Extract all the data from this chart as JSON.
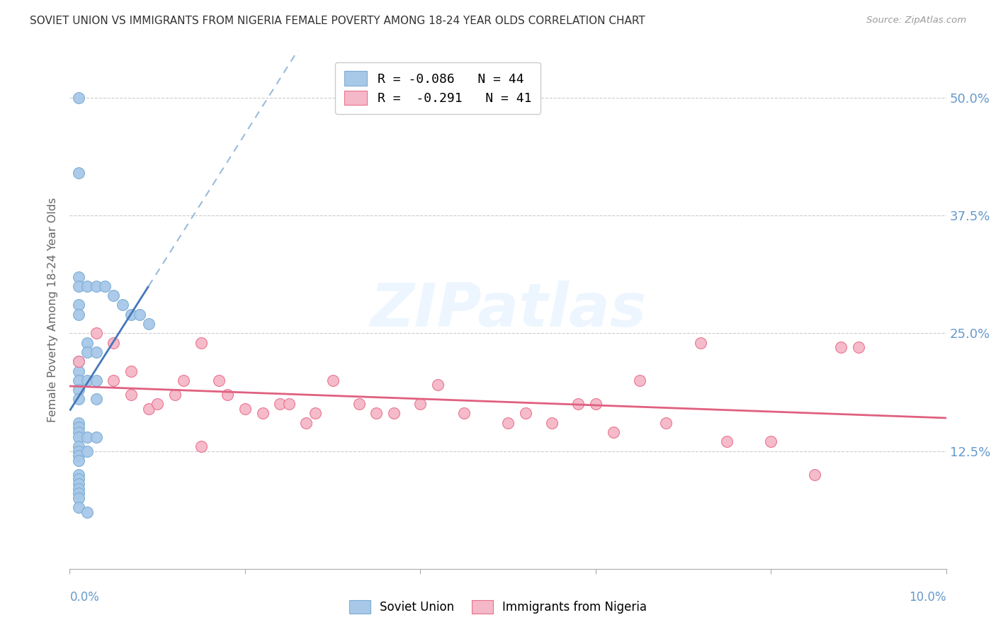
{
  "title": "SOVIET UNION VS IMMIGRANTS FROM NIGERIA FEMALE POVERTY AMONG 18-24 YEAR OLDS CORRELATION CHART",
  "source": "Source: ZipAtlas.com",
  "ylabel": "Female Poverty Among 18-24 Year Olds",
  "xlim": [
    0.0,
    0.1
  ],
  "ylim": [
    0.0,
    0.55
  ],
  "yticks": [
    0.125,
    0.25,
    0.375,
    0.5
  ],
  "ytick_labels": [
    "12.5%",
    "25.0%",
    "37.5%",
    "50.0%"
  ],
  "xtick_positions": [
    0.0,
    0.02,
    0.04,
    0.06,
    0.08,
    0.1
  ],
  "color_blue": "#a8c8e8",
  "color_blue_edge": "#7aadd4",
  "color_pink": "#f5b8c8",
  "color_pink_edge": "#e8708a",
  "color_line_blue": "#4477bb",
  "color_line_pink": "#e06080",
  "color_line_dashed": "#99bbdd",
  "color_grid": "#cccccc",
  "color_axis": "#aaaaaa",
  "color_ytick_right": "#6699cc",
  "color_ylabel": "#666666",
  "color_xlabel": "#6699cc",
  "color_title": "#333333",
  "color_source": "#999999",
  "color_watermark": "#ddeeff",
  "watermark": "ZIPatlas",
  "legend_label_blue": "R = -0.086   N = 44",
  "legend_label_pink": "R =  -0.291   N = 41",
  "soviet_x": [
    0.001,
    0.001,
    0.001,
    0.001,
    0.001,
    0.001,
    0.001,
    0.001,
    0.001,
    0.001,
    0.001,
    0.001,
    0.001,
    0.001,
    0.001,
    0.001,
    0.001,
    0.001,
    0.001,
    0.001,
    0.001,
    0.001,
    0.001,
    0.002,
    0.002,
    0.002,
    0.002,
    0.002,
    0.002,
    0.003,
    0.003,
    0.003,
    0.003,
    0.004,
    0.005,
    0.006,
    0.007,
    0.008,
    0.009,
    0.001,
    0.001,
    0.001,
    0.002,
    0.003
  ],
  "soviet_y": [
    0.5,
    0.42,
    0.31,
    0.3,
    0.28,
    0.27,
    0.22,
    0.21,
    0.2,
    0.19,
    0.18,
    0.155,
    0.15,
    0.145,
    0.14,
    0.13,
    0.125,
    0.12,
    0.115,
    0.1,
    0.095,
    0.09,
    0.085,
    0.3,
    0.24,
    0.23,
    0.2,
    0.14,
    0.125,
    0.3,
    0.23,
    0.2,
    0.18,
    0.3,
    0.29,
    0.28,
    0.27,
    0.27,
    0.26,
    0.08,
    0.075,
    0.065,
    0.06,
    0.14
  ],
  "nigeria_x": [
    0.001,
    0.003,
    0.005,
    0.005,
    0.007,
    0.007,
    0.009,
    0.01,
    0.012,
    0.013,
    0.015,
    0.015,
    0.017,
    0.018,
    0.02,
    0.022,
    0.024,
    0.025,
    0.027,
    0.028,
    0.03,
    0.033,
    0.035,
    0.037,
    0.04,
    0.042,
    0.045,
    0.05,
    0.052,
    0.055,
    0.058,
    0.06,
    0.062,
    0.065,
    0.068,
    0.072,
    0.075,
    0.08,
    0.085,
    0.088,
    0.09
  ],
  "nigeria_y": [
    0.22,
    0.25,
    0.24,
    0.2,
    0.21,
    0.185,
    0.17,
    0.175,
    0.185,
    0.2,
    0.24,
    0.13,
    0.2,
    0.185,
    0.17,
    0.165,
    0.175,
    0.175,
    0.155,
    0.165,
    0.2,
    0.175,
    0.165,
    0.165,
    0.175,
    0.195,
    0.165,
    0.155,
    0.165,
    0.155,
    0.175,
    0.175,
    0.145,
    0.2,
    0.155,
    0.24,
    0.135,
    0.135,
    0.1,
    0.235,
    0.235
  ]
}
